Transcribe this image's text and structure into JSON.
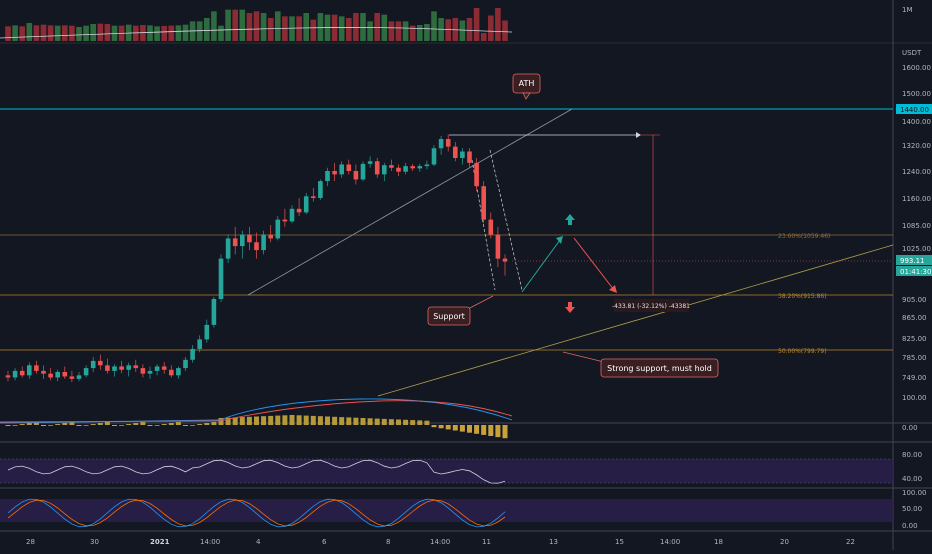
{
  "price_axis": {
    "currency": "USDT",
    "ticks": [
      "1600.00",
      "1500.00",
      "1400.00",
      "1320.00",
      "1240.00",
      "1160.00",
      "1085.00",
      "1025.00",
      "905.00",
      "865.00",
      "825.00",
      "785.00",
      "749.00"
    ],
    "ath_label": "1440.00",
    "last_price": "993.11",
    "countdown": "01:41:30",
    "volume_tick": "1M"
  },
  "macd_axis": {
    "ticks": [
      "100.00",
      "0.00"
    ]
  },
  "rsi_axis": {
    "ticks": [
      "80.00",
      "40.00"
    ]
  },
  "stoch_axis": {
    "ticks": [
      "100.00",
      "50.00",
      "0.00"
    ]
  },
  "time_axis": {
    "labels": [
      "28",
      "30",
      "2021",
      "14:00",
      "4",
      "6",
      "8",
      "14:00",
      "11",
      "13",
      "15",
      "14:00",
      "18",
      "20",
      "22"
    ]
  },
  "annotations": {
    "ath": "ATH",
    "support": "Support",
    "strong_support": "Strong support, must hold",
    "measure": "-433.81 (-32.12%) -43381"
  },
  "fib_levels": {
    "fib236": "23.60%(1059.46)",
    "fib382": "38.20%(915.86)",
    "fib50": "50.00%(799.79)"
  },
  "colors": {
    "up": "#26a69a",
    "down": "#ef5350",
    "ath_line": "#00bcd4",
    "fib": "#b8862b",
    "trend": "#b3a34a"
  },
  "chart_data": {
    "type": "candlestick",
    "title": "",
    "ylim": [
      700,
      1660
    ],
    "reference_lines": {
      "ath": 1440,
      "fib_23_6": 1059.46,
      "fib_38_2": 915.86,
      "fib_50": 799.79
    },
    "candles": [
      [
        752,
        760,
        740,
        748
      ],
      [
        748,
        765,
        742,
        760
      ],
      [
        760,
        768,
        748,
        752
      ],
      [
        752,
        775,
        745,
        770
      ],
      [
        770,
        778,
        755,
        760
      ],
      [
        760,
        770,
        745,
        755
      ],
      [
        755,
        765,
        742,
        748
      ],
      [
        748,
        762,
        740,
        758
      ],
      [
        758,
        768,
        745,
        750
      ],
      [
        750,
        760,
        738,
        745
      ],
      [
        745,
        758,
        740,
        752
      ],
      [
        752,
        770,
        748,
        765
      ],
      [
        765,
        785,
        758,
        778
      ],
      [
        778,
        790,
        762,
        770
      ],
      [
        770,
        782,
        755,
        760
      ],
      [
        760,
        772,
        750,
        768
      ],
      [
        768,
        778,
        756,
        762
      ],
      [
        762,
        775,
        750,
        770
      ],
      [
        770,
        780,
        758,
        765
      ],
      [
        765,
        772,
        748,
        755
      ],
      [
        755,
        768,
        745,
        760
      ],
      [
        760,
        772,
        752,
        768
      ],
      [
        768,
        776,
        755,
        762
      ],
      [
        762,
        770,
        748,
        752
      ],
      [
        752,
        768,
        745,
        765
      ],
      [
        765,
        785,
        760,
        780
      ],
      [
        780,
        810,
        775,
        802
      ],
      [
        802,
        830,
        795,
        822
      ],
      [
        822,
        860,
        815,
        850
      ],
      [
        850,
        910,
        845,
        905
      ],
      [
        905,
        1010,
        898,
        1000
      ],
      [
        1000,
        1060,
        990,
        1050
      ],
      [
        1050,
        1080,
        1010,
        1030
      ],
      [
        1030,
        1070,
        1000,
        1060
      ],
      [
        1060,
        1080,
        1020,
        1040
      ],
      [
        1040,
        1065,
        1000,
        1020
      ],
      [
        1020,
        1070,
        1010,
        1060
      ],
      [
        1060,
        1085,
        1040,
        1050
      ],
      [
        1050,
        1110,
        1045,
        1100
      ],
      [
        1100,
        1130,
        1080,
        1095
      ],
      [
        1095,
        1140,
        1090,
        1130
      ],
      [
        1130,
        1160,
        1110,
        1120
      ],
      [
        1120,
        1175,
        1115,
        1165
      ],
      [
        1165,
        1190,
        1150,
        1160
      ],
      [
        1160,
        1215,
        1155,
        1210
      ],
      [
        1210,
        1250,
        1195,
        1240
      ],
      [
        1240,
        1265,
        1210,
        1230
      ],
      [
        1230,
        1270,
        1220,
        1260
      ],
      [
        1260,
        1275,
        1230,
        1240
      ],
      [
        1240,
        1260,
        1200,
        1215
      ],
      [
        1215,
        1270,
        1210,
        1262
      ],
      [
        1262,
        1285,
        1250,
        1270
      ],
      [
        1270,
        1280,
        1220,
        1230
      ],
      [
        1230,
        1265,
        1210,
        1258
      ],
      [
        1258,
        1275,
        1240,
        1250
      ],
      [
        1250,
        1260,
        1225,
        1238
      ],
      [
        1238,
        1265,
        1230,
        1255
      ],
      [
        1255,
        1262,
        1240,
        1248
      ],
      [
        1248,
        1262,
        1238,
        1255
      ],
      [
        1255,
        1272,
        1245,
        1260
      ],
      [
        1260,
        1320,
        1255,
        1310
      ],
      [
        1310,
        1350,
        1290,
        1340
      ],
      [
        1340,
        1355,
        1300,
        1315
      ],
      [
        1315,
        1330,
        1270,
        1280
      ],
      [
        1280,
        1310,
        1260,
        1300
      ],
      [
        1300,
        1310,
        1250,
        1265
      ],
      [
        1265,
        1280,
        1180,
        1195
      ],
      [
        1195,
        1210,
        1090,
        1100
      ],
      [
        1100,
        1120,
        1050,
        1060
      ],
      [
        1060,
        1080,
        980,
        1000
      ],
      [
        1000,
        1010,
        960,
        993
      ]
    ]
  }
}
